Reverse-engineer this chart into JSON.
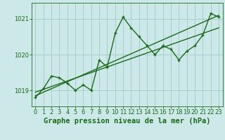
{
  "title": "Graphe pression niveau de la mer (hPa)",
  "bg_color": "#cce8e8",
  "grid_color": "#a8cccc",
  "line_color": "#1a6b1a",
  "xlim": [
    -0.5,
    23.5
  ],
  "ylim": [
    1018.55,
    1021.45
  ],
  "yticks": [
    1019,
    1020,
    1021
  ],
  "xticks": [
    0,
    1,
    2,
    3,
    4,
    5,
    6,
    7,
    8,
    9,
    10,
    11,
    12,
    13,
    14,
    15,
    16,
    17,
    18,
    19,
    20,
    21,
    22,
    23
  ],
  "data_x": [
    0,
    1,
    2,
    3,
    4,
    5,
    6,
    7,
    8,
    9,
    10,
    11,
    12,
    13,
    14,
    15,
    16,
    17,
    18,
    19,
    20,
    21,
    22,
    23
  ],
  "data_y": [
    1018.8,
    1019.05,
    1019.4,
    1019.35,
    1019.2,
    1019.0,
    1019.15,
    1019.0,
    1019.85,
    1019.65,
    1020.6,
    1021.05,
    1020.75,
    1020.5,
    1020.25,
    1020.0,
    1020.25,
    1020.15,
    1019.85,
    1020.1,
    1020.25,
    1020.55,
    1021.15,
    1021.05
  ],
  "trend1_x": [
    0,
    23
  ],
  "trend1_y": [
    1018.85,
    1021.1
  ],
  "trend2_x": [
    0,
    23
  ],
  "trend2_y": [
    1018.95,
    1020.75
  ],
  "marker_size": 3.5,
  "line_width": 1.0,
  "title_fontsize": 7.5,
  "tick_fontsize": 6.0
}
